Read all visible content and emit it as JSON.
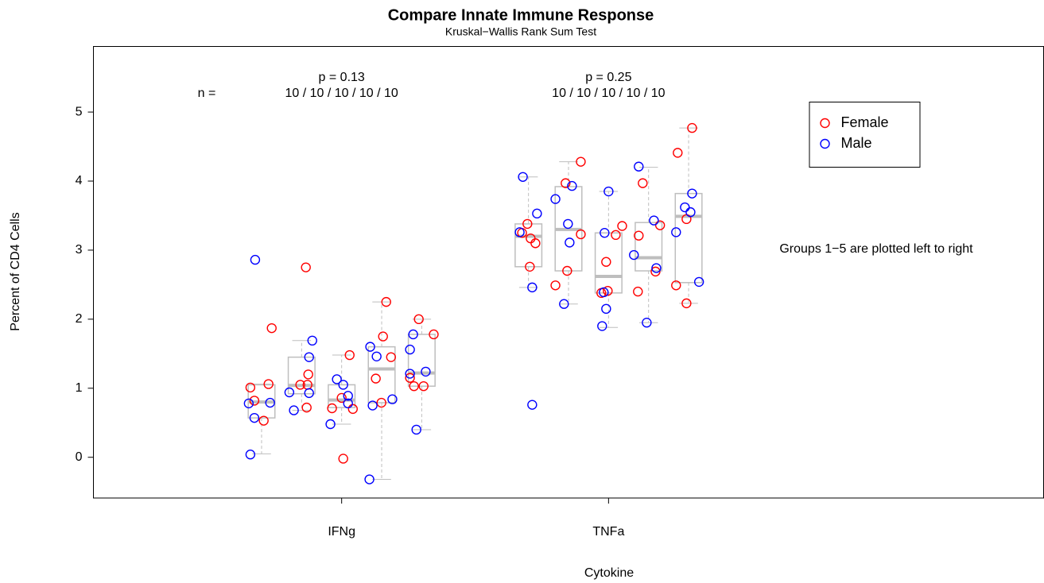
{
  "chart_data": {
    "type": "box",
    "title": "Compare Innate Immune Response",
    "subtitle": "Kruskal−Wallis Rank Sum Test",
    "xlabel": "Cytokine",
    "ylabel": "Percent of CD4 Cells",
    "n_prefix": "n =",
    "note": "Groups 1−5 are plotted left to right",
    "xlim": [
      0.07,
      3.63
    ],
    "xticks": [
      {
        "value": 1,
        "label": "IFNg"
      },
      {
        "value": 2,
        "label": "TNFa"
      }
    ],
    "ylim": [
      -0.59,
      5.95
    ],
    "yticks": [
      0,
      1,
      2,
      3,
      4,
      5
    ],
    "box_color": "#bebebe",
    "legend": "top-right",
    "groups": [
      {
        "x": 1,
        "p_label": "p = 0.13",
        "n_label": "10 / 10 / 10 / 10 / 10",
        "boxes": [
          {
            "min": 0.05,
            "q1": 0.57,
            "median": 0.8,
            "q3": 1.05,
            "max": 1.06
          },
          {
            "min": 0.68,
            "q1": 0.92,
            "median": 1.04,
            "q3": 1.45,
            "max": 1.69
          },
          {
            "min": 0.48,
            "q1": 0.72,
            "median": 0.83,
            "q3": 1.05,
            "max": 1.48
          },
          {
            "min": -0.32,
            "q1": 0.79,
            "median": 1.28,
            "q3": 1.6,
            "max": 2.25
          },
          {
            "min": 0.4,
            "q1": 1.03,
            "median": 1.22,
            "q3": 1.78,
            "max": 2.0
          }
        ]
      },
      {
        "x": 2,
        "p_label": "p = 0.25",
        "n_label": "10 / 10 / 10 / 10 / 10",
        "boxes": [
          {
            "min": 2.46,
            "q1": 2.76,
            "median": 3.2,
            "q3": 3.38,
            "max": 4.06
          },
          {
            "min": 2.22,
            "q1": 2.7,
            "median": 3.3,
            "q3": 3.92,
            "max": 4.28
          },
          {
            "min": 1.88,
            "q1": 2.38,
            "median": 2.62,
            "q3": 3.25,
            "max": 3.85
          },
          {
            "min": 1.95,
            "q1": 2.7,
            "median": 2.89,
            "q3": 3.4,
            "max": 4.2
          },
          {
            "min": 2.23,
            "q1": 2.53,
            "median": 3.49,
            "q3": 3.82,
            "max": 4.77
          }
        ]
      }
    ],
    "series": [
      {
        "name": "Female",
        "color": "#ff0000",
        "x": [
          0.658,
          0.673,
          0.726,
          0.708,
          0.738,
          0.845,
          0.875,
          0.872,
          0.869,
          0.866,
          0.964,
          1.0,
          1.03,
          1.042,
          1.006,
          1.155,
          1.167,
          1.128,
          1.149,
          1.185,
          1.289,
          1.345,
          1.256,
          1.271,
          1.307,
          1.696,
          1.708,
          1.726,
          1.705,
          1.676,
          1.801,
          1.839,
          1.845,
          1.896,
          1.896,
          1.991,
          1.997,
          2.027,
          2.051,
          1.973,
          2.128,
          2.113,
          2.11,
          2.176,
          2.193,
          2.313,
          2.259,
          2.292,
          2.253,
          2.292
        ],
        "values": [
          1.01,
          0.82,
          1.06,
          0.53,
          1.87,
          1.05,
          1.2,
          1.05,
          0.72,
          2.75,
          0.71,
          0.86,
          1.48,
          0.7,
          -0.02,
          1.75,
          2.25,
          1.14,
          0.79,
          1.45,
          2.0,
          1.78,
          1.15,
          1.03,
          1.03,
          3.38,
          3.17,
          3.1,
          2.76,
          3.25,
          2.49,
          3.97,
          2.7,
          4.28,
          3.23,
          2.83,
          2.41,
          3.22,
          3.35,
          2.38,
          3.97,
          3.21,
          2.4,
          2.69,
          3.36,
          4.77,
          4.41,
          3.45,
          2.49,
          2.23
        ]
      },
      {
        "name": "Male",
        "color": "#0000ff",
        "x": [
          0.652,
          0.673,
          0.732,
          0.658,
          0.676,
          0.804,
          0.821,
          0.878,
          0.878,
          0.89,
          0.958,
          0.982,
          1.006,
          1.024,
          1.024,
          1.107,
          1.131,
          1.116,
          1.19,
          1.104,
          1.268,
          1.256,
          1.315,
          1.256,
          1.28,
          1.679,
          1.732,
          1.667,
          1.714,
          1.714,
          1.801,
          1.863,
          1.848,
          1.854,
          1.833,
          2.0,
          1.985,
          1.991,
          1.976,
          1.982,
          2.113,
          2.095,
          2.17,
          2.179,
          2.143,
          2.313,
          2.286,
          2.307,
          2.253,
          2.339
        ],
        "values": [
          0.78,
          0.57,
          0.79,
          0.04,
          2.86,
          0.94,
          0.68,
          0.93,
          1.45,
          1.69,
          0.48,
          1.13,
          1.05,
          0.89,
          0.78,
          1.6,
          1.46,
          0.75,
          0.84,
          -0.32,
          1.78,
          1.56,
          1.24,
          1.21,
          0.4,
          4.06,
          3.53,
          3.26,
          2.46,
          0.76,
          3.74,
          3.93,
          3.38,
          3.11,
          2.22,
          3.85,
          3.25,
          2.15,
          1.9,
          2.39,
          4.21,
          2.93,
          3.43,
          2.74,
          1.95,
          3.82,
          3.62,
          3.55,
          3.26,
          2.54
        ]
      }
    ]
  }
}
